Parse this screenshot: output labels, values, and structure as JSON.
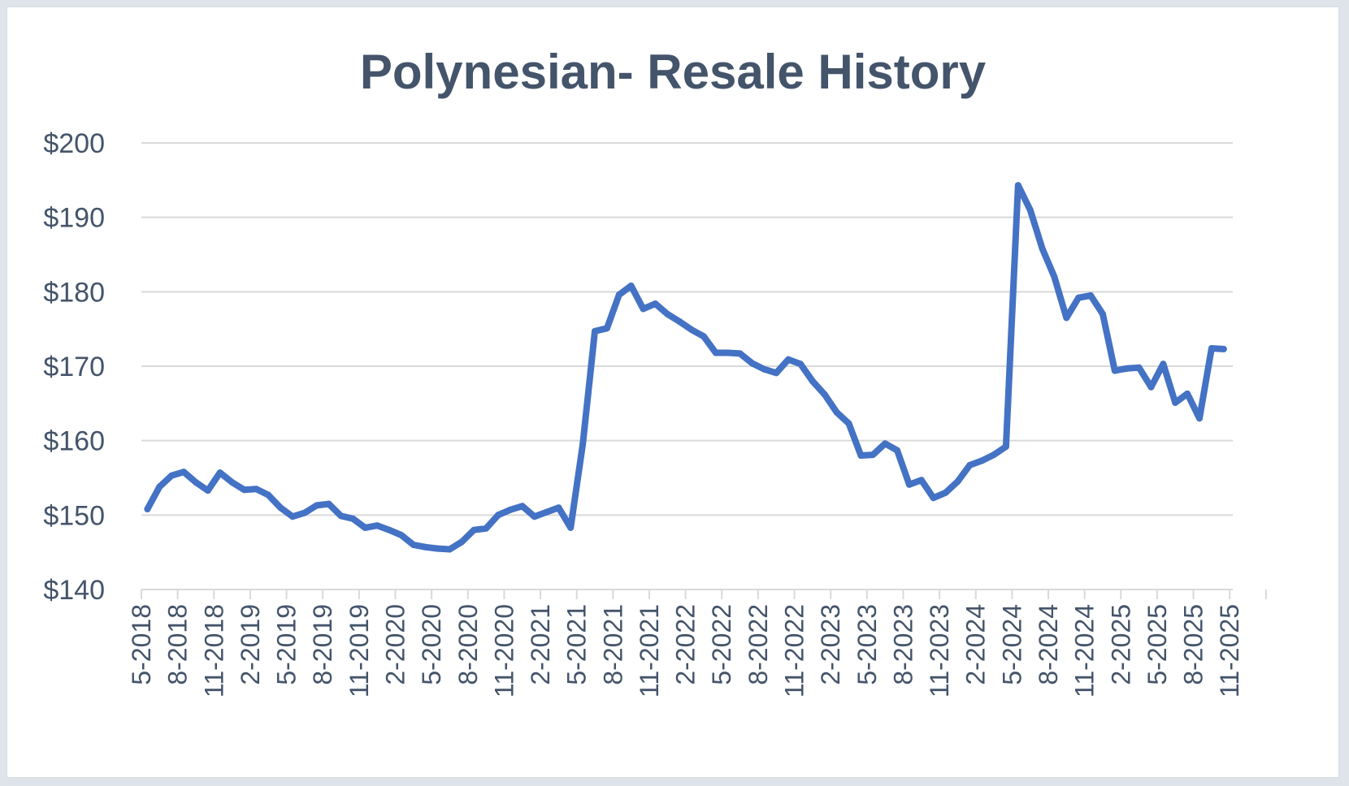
{
  "chart_data": {
    "type": "line",
    "title": "Polynesian- Resale History",
    "xlabel": "",
    "ylabel": "",
    "ylim": [
      140,
      200
    ],
    "yticks": [
      140,
      150,
      160,
      170,
      180,
      190,
      200
    ],
    "ytick_labels": [
      "$140",
      "$150",
      "$160",
      "$170",
      "$180",
      "$190",
      "$200"
    ],
    "x_tick_labels": [
      "5-2018",
      "8-2018",
      "11-2018",
      "2-2019",
      "5-2019",
      "8-2019",
      "11-2019",
      "2-2020",
      "5-2020",
      "8-2020",
      "11-2020",
      "2-2021",
      "5-2021",
      "8-2021",
      "11-2021",
      "2-2022",
      "5-2022",
      "8-2022",
      "11-2022",
      "2-2023",
      "5-2023",
      "8-2023",
      "11-2023",
      "2-2024",
      "5-2024",
      "8-2024",
      "11-2024",
      "2-2025",
      "5-2025",
      "8-2025",
      "11-2025"
    ],
    "grid": true,
    "legend": "none",
    "series": [
      {
        "color": "#4472c4",
        "x": [
          "5-2018",
          "6-2018",
          "7-2018",
          "8-2018",
          "9-2018",
          "10-2018",
          "11-2018",
          "12-2018",
          "1-2019",
          "2-2019",
          "3-2019",
          "4-2019",
          "5-2019",
          "6-2019",
          "7-2019",
          "8-2019",
          "9-2019",
          "10-2019",
          "11-2019",
          "12-2019",
          "1-2020",
          "2-2020",
          "3-2020",
          "4-2020",
          "5-2020",
          "6-2020",
          "7-2020",
          "8-2020",
          "9-2020",
          "10-2020",
          "11-2020",
          "12-2020",
          "1-2021",
          "2-2021",
          "3-2021",
          "4-2021",
          "5-2021",
          "6-2021",
          "7-2021",
          "8-2021",
          "9-2021",
          "10-2021",
          "11-2021",
          "12-2021",
          "1-2022",
          "2-2022",
          "3-2022",
          "4-2022",
          "5-2022",
          "6-2022",
          "7-2022",
          "8-2022",
          "9-2022",
          "10-2022",
          "11-2022",
          "12-2022",
          "1-2023",
          "2-2023",
          "3-2023",
          "4-2023",
          "5-2023",
          "6-2023",
          "7-2023",
          "8-2023",
          "9-2023",
          "10-2023",
          "11-2023",
          "12-2023",
          "1-2024",
          "2-2024",
          "3-2024",
          "4-2024",
          "5-2024",
          "6-2024",
          "7-2024",
          "8-2024",
          "9-2024",
          "10-2024",
          "11-2024",
          "12-2024",
          "1-2025",
          "2-2025",
          "3-2025",
          "4-2025",
          "5-2025",
          "6-2025",
          "7-2025",
          "8-2025",
          "9-2025",
          "10-2025"
        ],
        "values": [
          150.8,
          153.8,
          155.3,
          155.8,
          154.4,
          153.3,
          155.7,
          154.4,
          153.4,
          153.5,
          152.7,
          151.0,
          149.8,
          150.3,
          151.3,
          151.5,
          149.9,
          149.5,
          148.3,
          148.6,
          148.0,
          147.3,
          146.0,
          145.7,
          145.5,
          145.4,
          146.4,
          148.0,
          148.2,
          150.0,
          150.7,
          151.2,
          149.8,
          150.4,
          151.0,
          148.3,
          159.5,
          174.7,
          175.1,
          179.6,
          180.8,
          177.7,
          178.4,
          177.0,
          176.0,
          174.9,
          174.0,
          171.8,
          171.8,
          171.7,
          170.4,
          169.6,
          169.1,
          170.9,
          170.3,
          168.0,
          166.2,
          163.8,
          162.3,
          158.0,
          158.1,
          159.6,
          158.7,
          154.1,
          154.7,
          152.3,
          153.0,
          154.5,
          156.7,
          157.3,
          158.1,
          159.2,
          194.3,
          191.0,
          185.8,
          182.0,
          176.5,
          179.2,
          179.5,
          177.0,
          169.4,
          169.7,
          169.8,
          167.2,
          170.3,
          165.1,
          166.3,
          163.0,
          172.4,
          172.3
        ]
      }
    ]
  }
}
